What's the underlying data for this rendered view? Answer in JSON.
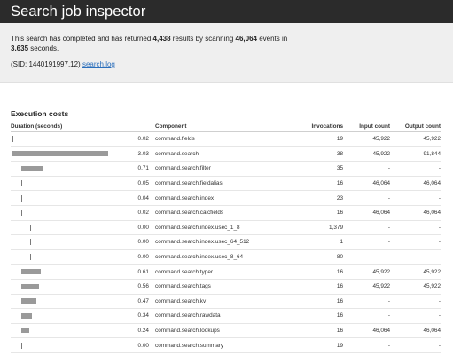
{
  "window": {
    "title": "Search job inspector"
  },
  "summary": {
    "text_1": "This search has completed and has returned ",
    "results": "4,438",
    "text_2": " results by scanning ",
    "events": "46,064",
    "text_3": " events in",
    "seconds": "3.635",
    "text_4": " seconds.",
    "sid_text": "(SID: 1440191997.12) ",
    "log_link": "search.log"
  },
  "section": {
    "title": "Execution costs"
  },
  "table": {
    "headers": {
      "duration": "Duration (seconds)",
      "component": "Component",
      "invocations": "Invocations",
      "input": "Input count",
      "output": "Output count"
    },
    "max_duration": 3.03,
    "rows": [
      {
        "duration": "0.02",
        "component": "command.fields",
        "level": 0,
        "invocations": "19",
        "input": "45,922",
        "output": "45,922"
      },
      {
        "duration": "3.03",
        "component": "command.search",
        "level": 0,
        "invocations": "38",
        "input": "45,922",
        "output": "91,844"
      },
      {
        "duration": "0.71",
        "component": "command.search.filter",
        "level": 1,
        "invocations": "35",
        "input": "-",
        "output": "-"
      },
      {
        "duration": "0.05",
        "component": "command.search.fieldalias",
        "level": 1,
        "invocations": "16",
        "input": "46,064",
        "output": "46,064"
      },
      {
        "duration": "0.04",
        "component": "command.search.index",
        "level": 1,
        "invocations": "23",
        "input": "-",
        "output": "-"
      },
      {
        "duration": "0.02",
        "component": "command.search.calcfields",
        "level": 1,
        "invocations": "16",
        "input": "46,064",
        "output": "46,064"
      },
      {
        "duration": "0.00",
        "component": "command.search.index.usec_1_8",
        "level": 2,
        "invocations": "1,379",
        "input": "-",
        "output": "-"
      },
      {
        "duration": "0.00",
        "component": "command.search.index.usec_64_512",
        "level": 2,
        "invocations": "1",
        "input": "-",
        "output": "-"
      },
      {
        "duration": "0.00",
        "component": "command.search.index.usec_8_64",
        "level": 2,
        "invocations": "80",
        "input": "-",
        "output": "-"
      },
      {
        "duration": "0.61",
        "component": "command.search.typer",
        "level": 1,
        "invocations": "16",
        "input": "45,922",
        "output": "45,922"
      },
      {
        "duration": "0.56",
        "component": "command.search.tags",
        "level": 1,
        "invocations": "16",
        "input": "45,922",
        "output": "45,922"
      },
      {
        "duration": "0.47",
        "component": "command.search.kv",
        "level": 1,
        "invocations": "16",
        "input": "-",
        "output": "-"
      },
      {
        "duration": "0.34",
        "component": "command.search.rawdata",
        "level": 1,
        "invocations": "16",
        "input": "-",
        "output": "-"
      },
      {
        "duration": "0.24",
        "component": "command.search.lookups",
        "level": 1,
        "invocations": "16",
        "input": "46,064",
        "output": "46,064"
      },
      {
        "duration": "0.00",
        "component": "command.search.summary",
        "level": 1,
        "invocations": "19",
        "input": "-",
        "output": "-"
      }
    ]
  },
  "colors": {
    "titlebar": "#2b2b2b",
    "summary_bg": "#efefef",
    "link": "#2a6ebb",
    "bar": "#9a9a9a"
  }
}
